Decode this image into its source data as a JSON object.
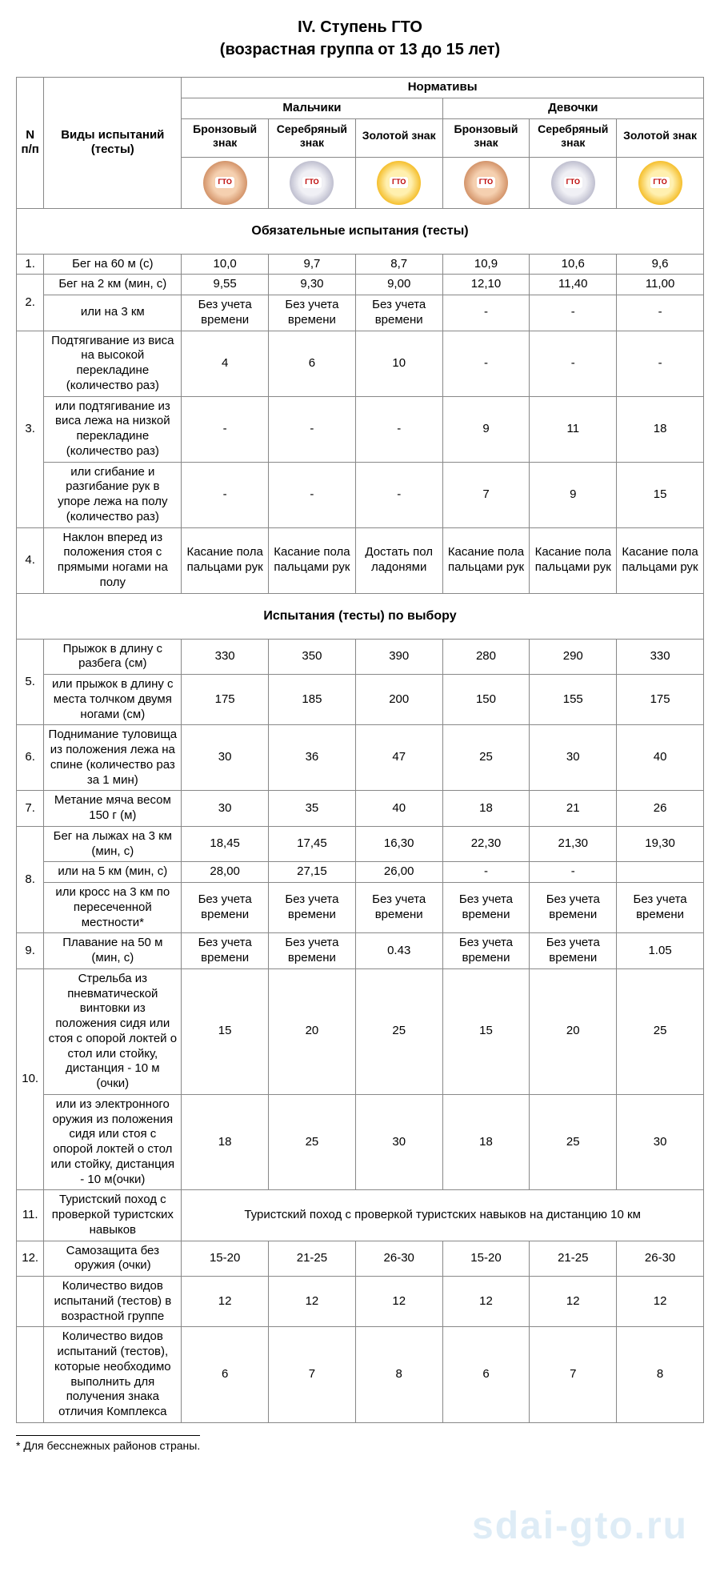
{
  "title_line1": "IV. Ступень ГТО",
  "title_line2": "(возрастная группа от 13 до 15 лет)",
  "header": {
    "col_num": "N п/п",
    "col_name": "Виды испытаний (тесты)",
    "normatives": "Нормативы",
    "boys": "Мальчики",
    "girls": "Девочки",
    "bronze": "Бронзовый знак",
    "silver": "Серебряный знак",
    "gold": "Золотой знак"
  },
  "section1_title": "Обязательные испытания (тесты)",
  "section2_title": "Испытания (тесты) по выбору",
  "rows": [
    {
      "n": "1.",
      "name": "Бег на 60 м (с)",
      "v": [
        "10,0",
        "9,7",
        "8,7",
        "10,9",
        "10,6",
        "9,6"
      ]
    },
    {
      "n": "2.",
      "name": "Бег на 2 км (мин, с)",
      "v": [
        "9,55",
        "9,30",
        "9,00",
        "12,10",
        "11,40",
        "11,00"
      ],
      "rowspan": 2
    },
    {
      "name": "или на 3 км",
      "v": [
        "Без учета времени",
        "Без учета времени",
        "Без учета времени",
        "-",
        "-",
        "-"
      ]
    },
    {
      "n": "3.",
      "name": "Подтягивание из виса на высокой перекладине (количество раз)",
      "v": [
        "4",
        "6",
        "10",
        "-",
        "-",
        "-"
      ],
      "rowspan": 3
    },
    {
      "name": "или подтягивание из виса лежа на низкой перекладине (количество раз)",
      "v": [
        "-",
        "-",
        "-",
        "9",
        "11",
        "18"
      ]
    },
    {
      "name": "или сгибание и разгибание рук в упоре лежа на полу (количество раз)",
      "v": [
        "-",
        "-",
        "-",
        "7",
        "9",
        "15"
      ]
    },
    {
      "n": "4.",
      "name": "Наклон вперед из положения стоя с прямыми ногами на полу",
      "v": [
        "Касание пола пальцами рук",
        "Касание пола пальцами рук",
        "Достать пол ладонями",
        "Касание пола пальцами рук",
        "Касание пола пальцами рук",
        "Касание пола пальцами рук"
      ]
    }
  ],
  "rows2": [
    {
      "n": "5.",
      "name": "Прыжок в длину с разбега (см)",
      "v": [
        "330",
        "350",
        "390",
        "280",
        "290",
        "330"
      ],
      "rowspan": 2
    },
    {
      "name": "или прыжок в длину с места толчком двумя ногами (см)",
      "v": [
        "175",
        "185",
        "200",
        "150",
        "155",
        "175"
      ]
    },
    {
      "n": "6.",
      "name": "Поднимание туловища из положения лежа на спине (количество раз за 1 мин)",
      "v": [
        "30",
        "36",
        "47",
        "25",
        "30",
        "40"
      ]
    },
    {
      "n": "7.",
      "name": "Метание мяча весом 150 г (м)",
      "v": [
        "30",
        "35",
        "40",
        "18",
        "21",
        "26"
      ]
    },
    {
      "n": "8.",
      "name": "Бег на лыжах на 3 км (мин, с)",
      "v": [
        "18,45",
        "17,45",
        "16,30",
        "22,30",
        "21,30",
        "19,30"
      ],
      "rowspan": 3
    },
    {
      "name": "или на 5 км (мин, с)",
      "v": [
        "28,00",
        "27,15",
        "26,00",
        "-",
        "-",
        ""
      ]
    },
    {
      "name": "или кросс на 3 км по пересеченной местности*",
      "v": [
        "Без учета времени",
        "Без учета времени",
        "Без учета времени",
        "Без учета времени",
        "Без учета времени",
        "Без учета времени"
      ]
    },
    {
      "n": "9.",
      "name": "Плавание на 50 м (мин, с)",
      "v": [
        "Без учета времени",
        "Без учета времени",
        "0.43",
        "Без учета времени",
        "Без учета времени",
        "1.05"
      ]
    },
    {
      "n": "10.",
      "name": "Стрельба из пневматической винтовки из положения сидя или стоя с опорой локтей о стол или стойку, дистанция - 10 м (очки)",
      "v": [
        "15",
        "20",
        "25",
        "15",
        "20",
        "25"
      ],
      "rowspan": 2
    },
    {
      "name": "или из электронного оружия из положения сидя или стоя с опорой локтей о стол или стойку, дистанция - 10 м(очки)",
      "v": [
        "18",
        "25",
        "30",
        "18",
        "25",
        "30"
      ]
    },
    {
      "n": "11.",
      "name": "Туристский поход с проверкой туристских навыков",
      "merged": "Туристский поход с проверкой туристских навыков на дистанцию 10 км"
    },
    {
      "n": "12.",
      "name": "Самозащита без оружия (очки)",
      "v": [
        "15-20",
        "21-25",
        "26-30",
        "15-20",
        "21-25",
        "26-30"
      ]
    },
    {
      "n": "",
      "name": "Количество видов испытаний (тестов) в возрастной группе",
      "v": [
        "12",
        "12",
        "12",
        "12",
        "12",
        "12"
      ]
    },
    {
      "n": "",
      "name": "Количество видов испытаний (тестов), которые необходимо выполнить для получения знака отличия Комплекса",
      "v": [
        "6",
        "7",
        "8",
        "6",
        "7",
        "8"
      ]
    }
  ],
  "footnote": "* Для бесснежных районов страны.",
  "watermark": "sdai-gto.ru"
}
